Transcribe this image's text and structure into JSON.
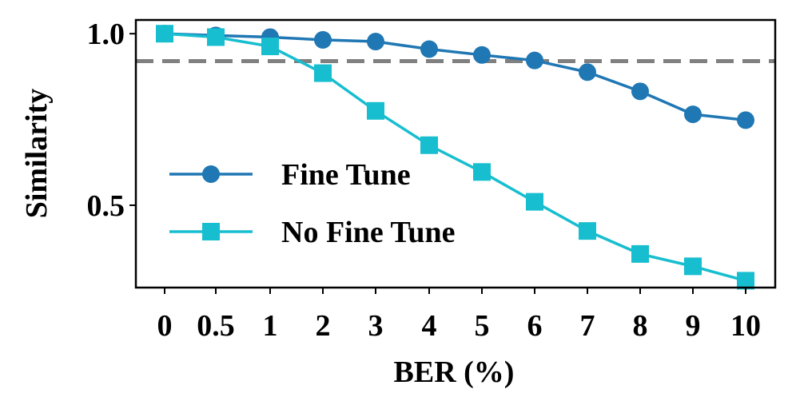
{
  "chart_data": {
    "type": "line",
    "categories": [
      "0",
      "0.5",
      "1",
      "2",
      "3",
      "4",
      "5",
      "6",
      "7",
      "8",
      "9",
      "10"
    ],
    "xlabel": "BER (%)",
    "ylabel": "Similarity",
    "ylim": [
      0.26,
      1.04
    ],
    "yticks": [
      0.5,
      1.0
    ],
    "ytick_labels": [
      "0.5",
      "1.0"
    ],
    "grid": false,
    "legend_position": "lower-left",
    "reference_line": {
      "y": 0.92,
      "style": "dashed",
      "color": "#808080"
    },
    "series": [
      {
        "name": "Fine Tune",
        "marker": "circle",
        "color": "#1f77b4",
        "values": [
          1.0,
          0.995,
          0.99,
          0.982,
          0.977,
          0.955,
          0.938,
          0.922,
          0.888,
          0.832,
          0.765,
          0.748
        ]
      },
      {
        "name": "No Fine Tune",
        "marker": "square",
        "color": "#17becf",
        "values": [
          1.0,
          0.99,
          0.963,
          0.885,
          0.775,
          0.675,
          0.597,
          0.51,
          0.425,
          0.358,
          0.322,
          0.28
        ]
      }
    ]
  }
}
